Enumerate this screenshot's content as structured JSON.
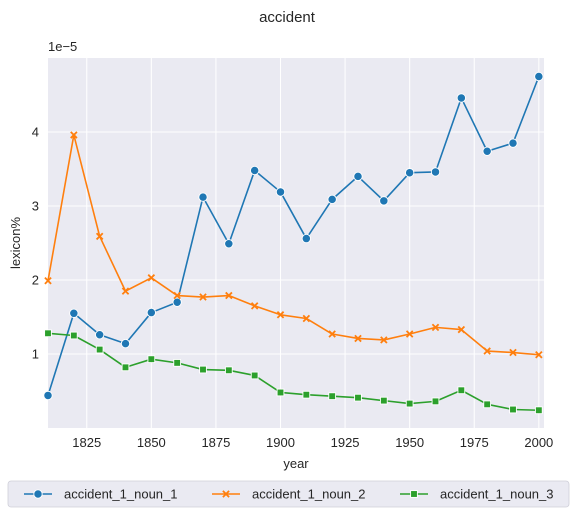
{
  "chart_data": {
    "type": "line",
    "title": "accident",
    "xlabel": "year",
    "ylabel": "lexicon%",
    "y_offset_label": "1e−5",
    "xlim": [
      1810,
      2002
    ],
    "ylim": [
      0.0,
      5.0
    ],
    "x_ticks": [
      1825,
      1850,
      1875,
      1900,
      1925,
      1950,
      1975,
      2000
    ],
    "y_ticks": [
      1,
      2,
      3,
      4
    ],
    "grid": true,
    "legend_placement": "bottom",
    "x": [
      1810,
      1820,
      1830,
      1840,
      1850,
      1860,
      1870,
      1880,
      1890,
      1900,
      1910,
      1920,
      1930,
      1940,
      1950,
      1960,
      1970,
      1980,
      1990,
      2000
    ],
    "series": [
      {
        "name": "accident_1_noun_1",
        "color": "#1f77b4",
        "marker": "circle",
        "values": [
          0.44,
          1.55,
          1.26,
          1.14,
          1.56,
          1.7,
          3.12,
          2.49,
          3.48,
          3.19,
          2.56,
          3.09,
          3.4,
          3.07,
          3.45,
          3.46,
          4.46,
          3.74,
          3.85,
          4.75
        ]
      },
      {
        "name": "accident_1_noun_2",
        "color": "#ff7f0e",
        "marker": "x",
        "values": [
          1.99,
          3.96,
          2.59,
          1.85,
          2.03,
          1.79,
          1.77,
          1.79,
          1.65,
          1.53,
          1.48,
          1.27,
          1.21,
          1.19,
          1.27,
          1.36,
          1.33,
          1.04,
          1.02,
          0.99
        ]
      },
      {
        "name": "accident_1_noun_3",
        "color": "#2ca02c",
        "marker": "square",
        "values": [
          1.28,
          1.25,
          1.06,
          0.82,
          0.93,
          0.88,
          0.79,
          0.78,
          0.71,
          0.48,
          0.45,
          0.43,
          0.41,
          0.37,
          0.33,
          0.36,
          0.51,
          0.32,
          0.25,
          0.24
        ]
      }
    ]
  }
}
